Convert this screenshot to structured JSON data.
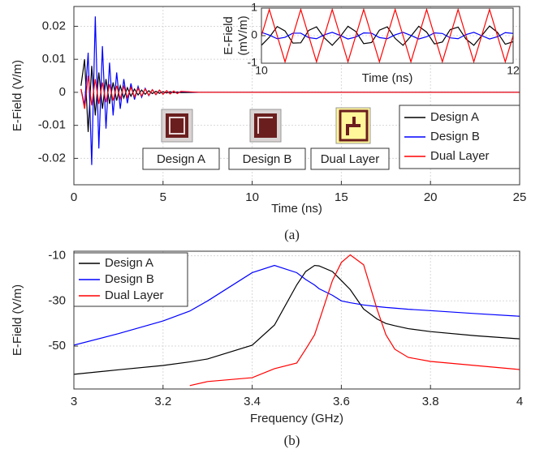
{
  "chart_data": [
    {
      "type": "line",
      "xlabel": "Time (ns)",
      "ylabel": "E-Field (V/m)",
      "caption": "(a)",
      "annotations": [
        "Design A",
        "Design B",
        "Dual Layer"
      ],
      "x": [
        0.4,
        0.6,
        0.8,
        1.0,
        1.2,
        1.4,
        1.6,
        1.8,
        2.0,
        2.2,
        2.4,
        2.6,
        2.8,
        3.0,
        3.2,
        3.4,
        3.6,
        3.8,
        4.0,
        4.2,
        4.4,
        4.6,
        4.8,
        5.0,
        5.2,
        5.4,
        5.6,
        5.8,
        6.0,
        7,
        25
      ],
      "series": [
        {
          "name": "Design A",
          "color": "#000000",
          "values": [
            0.002,
            0.01,
            -0.012,
            0.008,
            -0.007,
            0.006,
            -0.005,
            0.004,
            -0.0035,
            0.003,
            -0.0025,
            0.002,
            -0.0017,
            0.0014,
            -0.0012,
            0.001,
            -0.0008,
            0.0007,
            -0.0006,
            0.0005,
            -0.0004,
            0.0003,
            -0.0003,
            0.0002,
            -0.0002,
            0.0002,
            -0.0001,
            0.0001,
            -0.0001,
            0,
            0
          ]
        },
        {
          "name": "Design B",
          "color": "#0000ff",
          "values": [
            0.001,
            -0.004,
            0.012,
            -0.022,
            0.023,
            -0.017,
            0.014,
            -0.011,
            0.009,
            -0.007,
            0.006,
            -0.005,
            0.004,
            -0.0033,
            0.0027,
            -0.0022,
            0.0018,
            -0.0015,
            0.0012,
            -0.001,
            0.0008,
            -0.0007,
            0.0006,
            -0.0005,
            0.0004,
            -0.0003,
            0.0003,
            -0.0002,
            0.0002,
            0,
            0
          ]
        },
        {
          "name": "Dual Layer",
          "color": "#ff0000",
          "values": [
            0.001,
            -0.005,
            0.005,
            -0.004,
            0.004,
            -0.0035,
            0.003,
            -0.003,
            0.0025,
            -0.0025,
            0.002,
            -0.002,
            0.0018,
            -0.0016,
            0.0015,
            -0.0014,
            0.0012,
            -0.0011,
            0.001,
            -0.0009,
            0.0008,
            -0.0007,
            0.0007,
            -0.0006,
            0.0005,
            -0.0005,
            0.0004,
            -0.0004,
            0.0003,
            0,
            0
          ]
        }
      ],
      "xlim": [
        0,
        25
      ],
      "xticks": [
        0,
        5,
        10,
        15,
        20,
        25
      ],
      "ylim": [
        -0.028,
        0.026
      ],
      "yticks": [
        -0.02,
        -0.01,
        0,
        0.01,
        0.02
      ],
      "grid": true,
      "legend": "lower right"
    },
    {
      "type": "line",
      "xlabel": "Time (ns)",
      "ylabel": [
        "E-Field",
        "(mV/m)"
      ],
      "x": [
        10,
        10.0625,
        10.125,
        10.1875,
        10.25,
        10.3125,
        10.375,
        10.4375,
        10.5,
        10.5625,
        10.625,
        10.6875,
        10.75,
        10.8125,
        10.875,
        10.9375,
        11,
        11.0625,
        11.125,
        11.1875,
        11.25,
        11.3125,
        11.375,
        11.4375,
        11.5,
        11.5625,
        11.625,
        11.6875,
        11.75,
        11.8125,
        11.875,
        11.9375,
        12
      ],
      "series": [
        {
          "name": "Design A",
          "color": "#000000",
          "values": [
            -0.35,
            -0.06,
            0.33,
            0.17,
            -0.27,
            -0.26,
            0.19,
            0.32,
            -0.08,
            -0.35,
            -0.04,
            0.34,
            0.15,
            -0.29,
            -0.25,
            0.2,
            0.32,
            -0.1,
            -0.35,
            -0.02,
            0.34,
            0.13,
            -0.3,
            -0.23,
            0.22,
            0.31,
            -0.12,
            -0.35,
            0,
            0.35,
            0.12,
            -0.31,
            -0.22
          ]
        },
        {
          "name": "Design B",
          "color": "#0000ff",
          "values": [
            0.12,
            0.02,
            -0.11,
            -0.06,
            0.09,
            0.09,
            -0.07,
            -0.11,
            0.03,
            0.12,
            0.01,
            -0.12,
            -0.05,
            0.1,
            0.09,
            -0.07,
            -0.11,
            0.03,
            0.12,
            0.01,
            -0.12,
            -0.04,
            0.1,
            0.08,
            -0.08,
            -0.11,
            0.04,
            0.12,
            0,
            -0.12,
            -0.04,
            0.11,
            0.08
          ]
        },
        {
          "name": "Dual Layer",
          "color": "#ff0000",
          "values": [
            0,
            0.95,
            0,
            -0.95,
            0,
            0.95,
            0,
            -0.95,
            0,
            0.95,
            0,
            -0.95,
            0,
            0.95,
            0,
            -0.95,
            0,
            0.95,
            0,
            -0.95,
            0,
            0.95,
            0,
            -0.95,
            0,
            0.95,
            0,
            -0.95,
            0,
            0.95,
            0,
            -0.95,
            0
          ]
        }
      ],
      "xlim": [
        10,
        12
      ],
      "xticks": [
        10,
        12
      ],
      "ylim": [
        -1,
        1
      ],
      "yticks": [
        -1,
        0,
        1
      ],
      "grid": true
    },
    {
      "type": "line",
      "xlabel": "Frequency (GHz)",
      "ylabel": "E-Field (V/m)",
      "caption": "(b)",
      "x": [
        3.0,
        3.1,
        3.2,
        3.26,
        3.3,
        3.4,
        3.45,
        3.5,
        3.52,
        3.54,
        3.55,
        3.58,
        3.6,
        3.62,
        3.65,
        3.68,
        3.7,
        3.72,
        3.75,
        3.8,
        3.9,
        4.0
      ],
      "series": [
        {
          "name": "Design A",
          "color": "#000000",
          "values": [
            -62.5,
            -60.5,
            -58.6,
            -57,
            -55.7,
            -49.6,
            -40.7,
            -22.9,
            -17,
            -14.3,
            -14.5,
            -17,
            -21,
            -25,
            -33.6,
            -38,
            -40,
            -41,
            -42.3,
            -43.6,
            -45.4,
            -46.8
          ]
        },
        {
          "name": "Design B",
          "color": "#0000ff",
          "values": [
            -49.6,
            -44.5,
            -38.9,
            -34.5,
            -30,
            -17.5,
            -14.3,
            -17.5,
            -20.5,
            -23,
            -24.6,
            -27.5,
            -30,
            -30.8,
            -31.8,
            -32.5,
            -32.9,
            -33.2,
            -33.7,
            -34.3,
            -35.6,
            -36.8
          ]
        },
        {
          "name": "Dual Layer",
          "color": "#ff0000",
          "values": [
            null,
            null,
            null,
            -67.5,
            -65.7,
            -64,
            -60,
            -57.5,
            -51.4,
            -45,
            -39,
            -21,
            -13,
            -9.6,
            -14,
            -33.6,
            -45,
            -51.4,
            -55,
            -56.8,
            -58.6,
            -60.4
          ]
        }
      ],
      "xlim": [
        3,
        4
      ],
      "xticks": [
        3,
        3.2,
        3.4,
        3.6,
        3.8,
        4
      ],
      "ylim": [
        -69,
        -8
      ],
      "yticks": [
        -50,
        -30,
        -10
      ],
      "grid": true,
      "legend": "upper left"
    }
  ]
}
